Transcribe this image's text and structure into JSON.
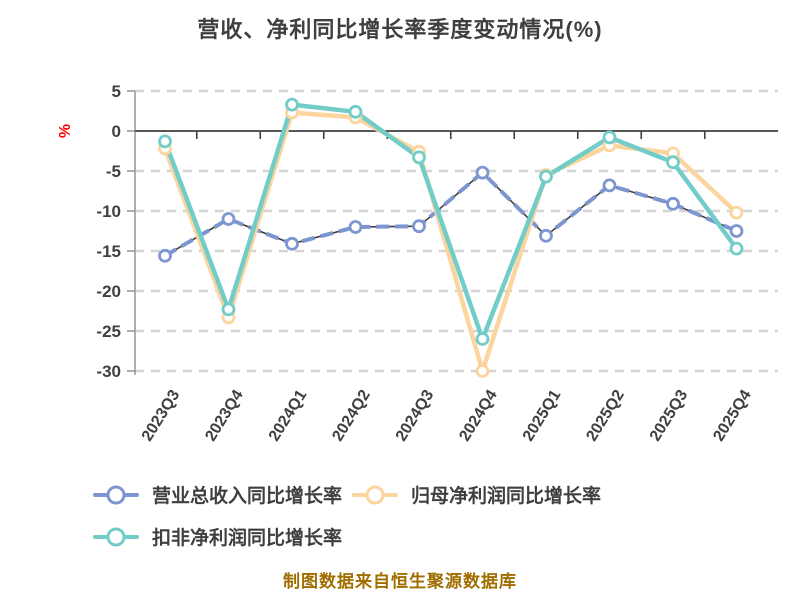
{
  "title": "营收、净利同比增长率季度变动情况(%)",
  "footer": "制图数据来自恒生聚源数据库",
  "colors": {
    "title": "#3f3f3f",
    "axis_label": "#ff0000",
    "tick_text": "#3f3f3f",
    "gridline": "#d5d5d5",
    "axis_line": "#9b9b9b",
    "zero_line": "#3f3f3f",
    "footer": "#a06e00",
    "marker_fill": "#ffffff"
  },
  "y_axis": {
    "label": "%",
    "ticks": [
      5,
      0,
      -5,
      -10,
      -15,
      -20,
      -25,
      -30
    ]
  },
  "chart_data": {
    "type": "line",
    "title": "营收、净利同比增长率季度变动情况(%)",
    "categories": [
      "2023Q3",
      "2023Q4",
      "2024Q1",
      "2024Q2",
      "2024Q3",
      "2024Q4",
      "2025Q1",
      "2025Q2",
      "2025Q3",
      "2025Q4"
    ],
    "series": [
      {
        "name": "营业总收入同比增长率",
        "color": "#7e96d0",
        "line_style": "dashed",
        "values": [
          -15.6,
          -11.0,
          -14.1,
          -12.0,
          -11.9,
          -5.2,
          -13.1,
          -6.8,
          -9.1,
          -12.5
        ]
      },
      {
        "name": "归母净利润同比增长率",
        "color": "#fcd49d",
        "line_style": "solid",
        "values": [
          -2.2,
          -23.3,
          2.3,
          1.7,
          -2.6,
          -30.0,
          -5.5,
          -1.8,
          -2.8,
          -10.2
        ]
      },
      {
        "name": "扣非净利润同比增长率",
        "color": "#72cdc9",
        "line_style": "solid",
        "values": [
          -1.3,
          -22.3,
          3.3,
          2.4,
          -3.3,
          -26.0,
          -5.7,
          -0.8,
          -3.9,
          -14.7
        ]
      }
    ],
    "ylim": [
      -30,
      5
    ],
    "ylabel": "%",
    "grid": "horizontal-dashed",
    "legend_position": "bottom-left"
  }
}
